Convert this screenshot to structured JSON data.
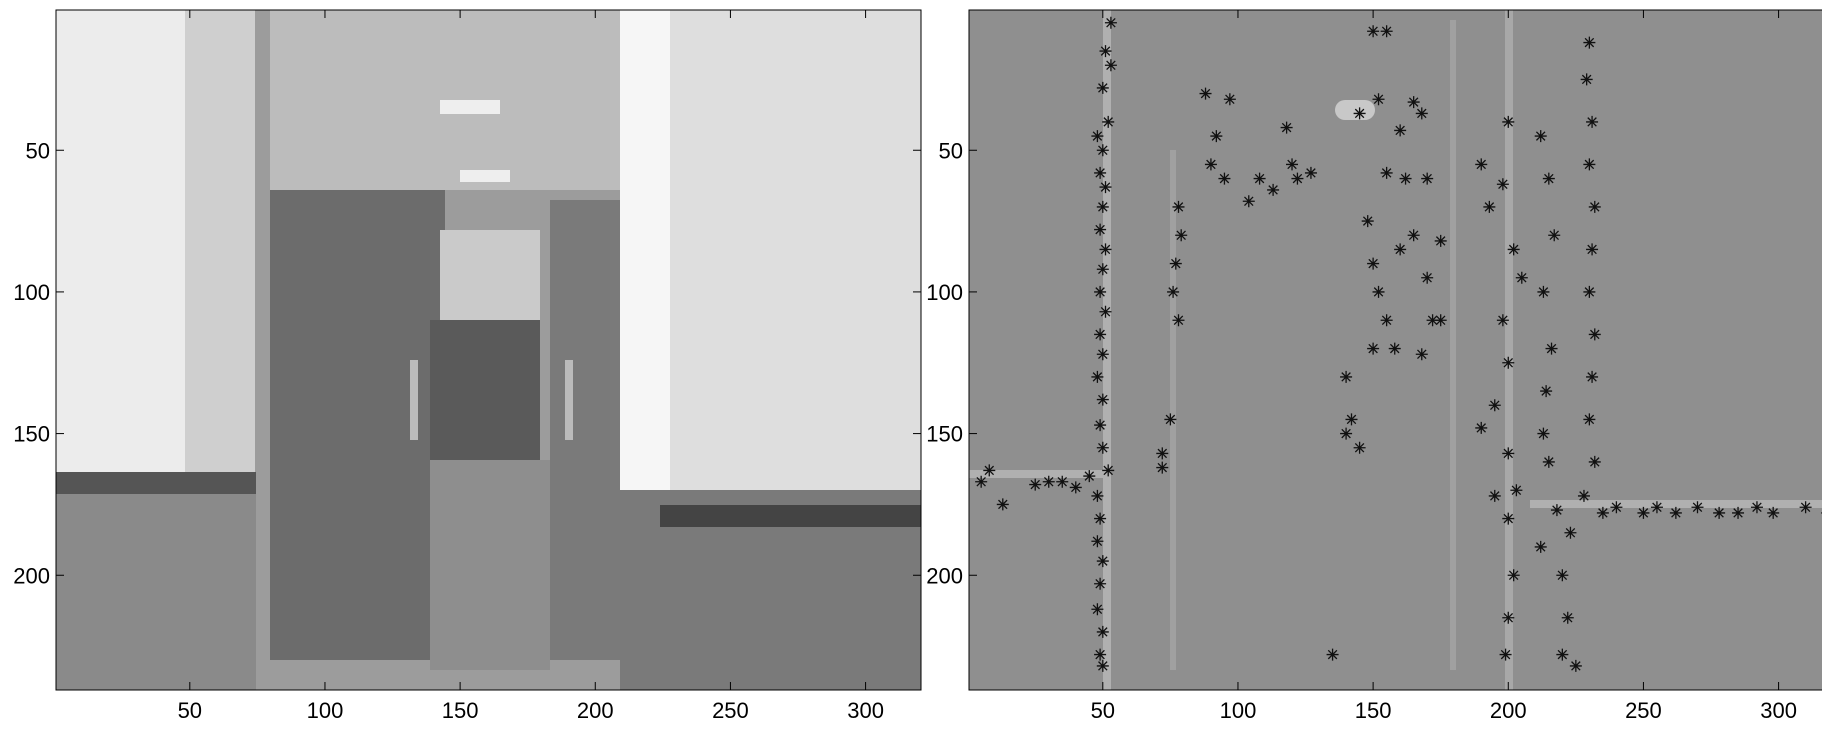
{
  "chart_data": [
    {
      "type": "image",
      "xlim": [
        0.5,
        320.5
      ],
      "ylim": [
        0.5,
        240.5
      ],
      "y_reversed": true,
      "xticks": [
        50,
        100,
        150,
        200,
        250,
        300
      ],
      "yticks": [
        50,
        100,
        150,
        200
      ]
    },
    {
      "type": "scatter",
      "marker": "*",
      "color": "#111111",
      "xlim": [
        0.5,
        320.5
      ],
      "ylim": [
        0.5,
        240.5
      ],
      "y_reversed": true,
      "xticks": [
        50,
        100,
        150,
        200,
        250,
        300
      ],
      "yticks": [
        50,
        100,
        150,
        200
      ],
      "x": [
        53,
        51,
        53,
        50,
        52,
        48,
        50,
        49,
        51,
        50,
        49,
        51,
        50,
        49,
        51,
        49,
        50,
        48,
        50,
        49,
        50,
        52,
        48,
        49,
        48,
        50,
        49,
        48,
        50,
        49,
        50,
        78,
        79,
        77,
        76,
        78,
        75,
        72,
        72,
        5,
        8,
        13,
        25,
        30,
        35,
        40,
        45,
        88,
        92,
        90,
        95,
        97,
        104,
        108,
        113,
        118,
        120,
        122,
        127,
        150,
        155,
        145,
        152,
        160,
        165,
        168,
        155,
        162,
        170,
        148,
        150,
        152,
        155,
        160,
        165,
        170,
        175,
        172,
        168,
        158,
        150,
        175,
        140,
        142,
        145,
        140,
        190,
        193,
        198,
        200,
        202,
        205,
        198,
        200,
        195,
        190,
        200,
        203,
        200,
        202,
        200,
        199,
        195,
        212,
        215,
        217,
        213,
        216,
        214,
        213,
        215,
        218,
        212,
        223,
        220,
        222,
        220,
        225,
        230,
        229,
        231,
        230,
        232,
        231,
        230,
        232,
        231,
        230,
        232,
        228,
        235,
        240,
        250,
        255,
        262,
        270,
        278,
        285,
        292,
        298,
        310,
        318,
        135
      ],
      "values": [
        5,
        15,
        20,
        28,
        40,
        45,
        50,
        58,
        63,
        70,
        78,
        85,
        92,
        100,
        107,
        115,
        122,
        130,
        138,
        147,
        155,
        163,
        172,
        180,
        188,
        195,
        203,
        212,
        220,
        228,
        232,
        70,
        80,
        90,
        100,
        110,
        145,
        157,
        162,
        167,
        163,
        175,
        168,
        167,
        167,
        169,
        165,
        30,
        45,
        55,
        60,
        32,
        68,
        60,
        64,
        42,
        55,
        60,
        58,
        8,
        8,
        37,
        32,
        43,
        33,
        37,
        58,
        60,
        60,
        75,
        90,
        100,
        110,
        85,
        80,
        95,
        82,
        110,
        122,
        120,
        120,
        110,
        130,
        145,
        155,
        150,
        55,
        70,
        62,
        40,
        85,
        95,
        110,
        125,
        140,
        148,
        157,
        170,
        180,
        200,
        215,
        228,
        172,
        45,
        60,
        80,
        100,
        120,
        135,
        150,
        160,
        177,
        190,
        185,
        200,
        215,
        228,
        232,
        12,
        25,
        40,
        55,
        70,
        85,
        100,
        115,
        130,
        145,
        160,
        172,
        178,
        176,
        178,
        176,
        178,
        176,
        178,
        178,
        176,
        178,
        176,
        178,
        228
      ]
    }
  ]
}
